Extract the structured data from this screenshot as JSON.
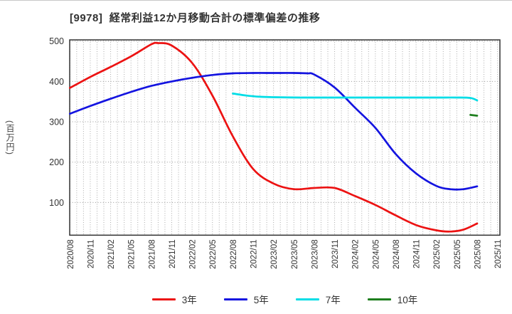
{
  "chart_data": {
    "type": "line",
    "title": "[9978]  経常利益12か月移動合計の標準偏差の推移",
    "ylabel": "(百万円)",
    "x_axis": {
      "start": "2020/08",
      "end": "2025/11",
      "tick_interval_months": 3,
      "grid_interval_months": 1,
      "tick_labels": [
        "2020/08",
        "2020/11",
        "2021/02",
        "2021/05",
        "2021/08",
        "2021/11",
        "2022/02",
        "2022/05",
        "2022/08",
        "2022/11",
        "2023/02",
        "2023/05",
        "2023/08",
        "2023/11",
        "2024/02",
        "2024/05",
        "2024/08",
        "2024/11",
        "2025/02",
        "2025/05",
        "2025/08",
        "2025/11"
      ],
      "label_rotation_deg": 90
    },
    "y_axis": {
      "ticks": [
        100,
        200,
        300,
        400,
        500
      ],
      "ylim": [
        19,
        503
      ],
      "grid": "dotted"
    },
    "legend_position": "bottom",
    "series": [
      {
        "name": "3年",
        "color": "#ec1212",
        "note": "month index 0 = 2020/08, values in 百万円",
        "points": [
          [
            0,
            384
          ],
          [
            3,
            411
          ],
          [
            6,
            436
          ],
          [
            9,
            462
          ],
          [
            12,
            492
          ],
          [
            13,
            495
          ],
          [
            15,
            489
          ],
          [
            18,
            446
          ],
          [
            21,
            365
          ],
          [
            24,
            264
          ],
          [
            27,
            183
          ],
          [
            30,
            147
          ],
          [
            33,
            133
          ],
          [
            36,
            136
          ],
          [
            39,
            136
          ],
          [
            42,
            116
          ],
          [
            45,
            94
          ],
          [
            48,
            68
          ],
          [
            51,
            44
          ],
          [
            54,
            31
          ],
          [
            56,
            28
          ],
          [
            58,
            33
          ],
          [
            60,
            48
          ]
        ]
      },
      {
        "name": "5年",
        "color": "#1414e0",
        "points": [
          [
            0,
            320
          ],
          [
            3,
            339
          ],
          [
            6,
            357
          ],
          [
            9,
            374
          ],
          [
            12,
            389
          ],
          [
            15,
            400
          ],
          [
            18,
            409
          ],
          [
            21,
            416
          ],
          [
            24,
            420
          ],
          [
            27,
            421
          ],
          [
            30,
            421
          ],
          [
            33,
            421
          ],
          [
            35,
            420
          ],
          [
            36,
            417
          ],
          [
            39,
            385
          ],
          [
            42,
            335
          ],
          [
            45,
            285
          ],
          [
            48,
            220
          ],
          [
            51,
            172
          ],
          [
            54,
            141
          ],
          [
            56,
            133
          ],
          [
            58,
            133
          ],
          [
            60,
            140
          ]
        ]
      },
      {
        "name": "7年",
        "color": "#00dde6",
        "points": [
          [
            24,
            370
          ],
          [
            26,
            365
          ],
          [
            28,
            362
          ],
          [
            30,
            361
          ],
          [
            34,
            360
          ],
          [
            38,
            360
          ],
          [
            42,
            360
          ],
          [
            46,
            360
          ],
          [
            50,
            360
          ],
          [
            54,
            360
          ],
          [
            57,
            360
          ],
          [
            59,
            359
          ],
          [
            60,
            353
          ]
        ]
      },
      {
        "name": "10年",
        "color": "#1e7e1e",
        "points": [
          [
            59,
            317
          ],
          [
            60,
            315
          ]
        ]
      }
    ]
  }
}
